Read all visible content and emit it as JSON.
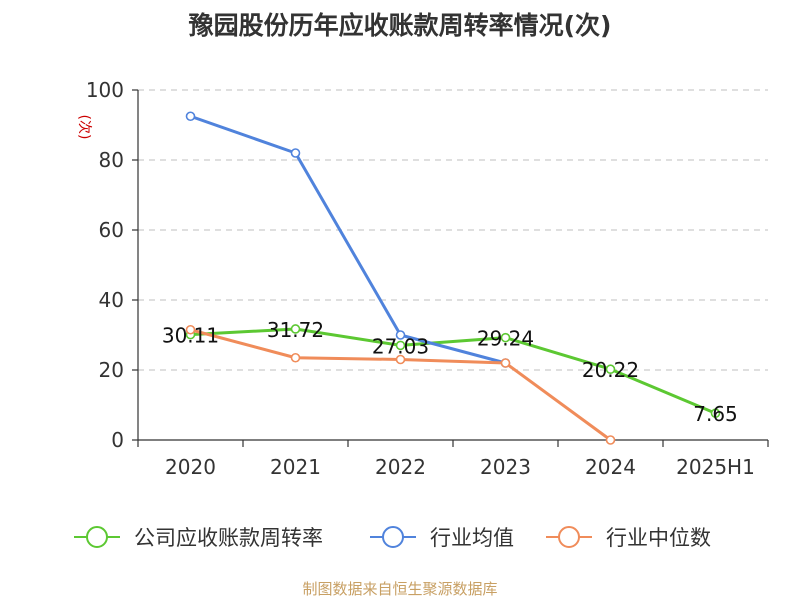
{
  "title": "豫园股份历年应收账款周转率情况(次)",
  "source": "制图数据来自恒生聚源数据库",
  "chart_data": {
    "type": "line",
    "title": "豫园股份历年应收账款周转率情况(次)",
    "ylabel": "(次)",
    "xlabel": "",
    "categories": [
      "2020",
      "2021",
      "2022",
      "2023",
      "2024",
      "2025H1"
    ],
    "ylim": [
      0,
      100
    ],
    "yticks": [
      0,
      20,
      40,
      60,
      80,
      100
    ],
    "grid": "horizontal-dashed",
    "legend_position": "bottom",
    "series": [
      {
        "name": "公司应收账款周转率",
        "color": "#5cc832",
        "values": [
          30.11,
          31.72,
          27.03,
          29.24,
          20.22,
          7.65
        ],
        "labels": [
          "30.11",
          "31.72",
          "27.03",
          "29.24",
          "20.22",
          "7.65"
        ]
      },
      {
        "name": "行业均值",
        "color": "#5083dc",
        "values": [
          92.5,
          82.0,
          30.0,
          22.0,
          null,
          null
        ]
      },
      {
        "name": "行业中位数",
        "color": "#f08c5a",
        "values": [
          31.5,
          23.5,
          23.0,
          22.0,
          0.0,
          null
        ]
      }
    ]
  }
}
